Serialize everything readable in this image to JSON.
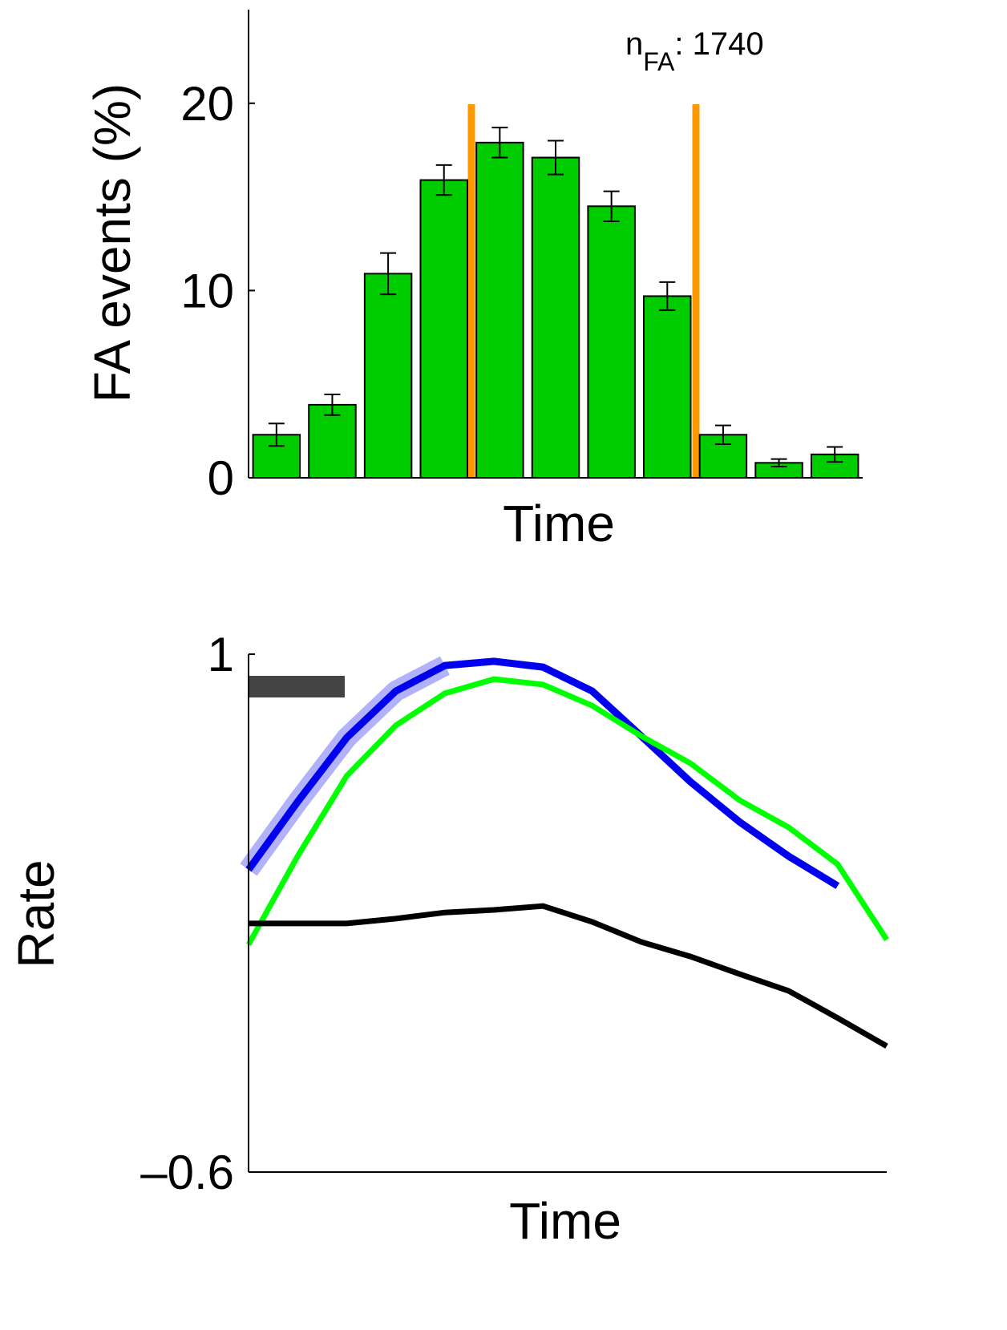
{
  "chart_data": [
    {
      "type": "bar",
      "y_label": "FA events (%)",
      "x_label": "Time",
      "annotation": {
        "base": "n",
        "sub": "FA",
        "rest": ": 1740"
      },
      "categories": [
        null,
        null,
        null,
        null,
        null,
        null,
        null,
        null,
        null,
        null,
        null
      ],
      "values": [
        2.3,
        3.9,
        10.9,
        15.9,
        17.9,
        17.1,
        14.5,
        9.7,
        2.3,
        0.8,
        1.25
      ],
      "errors": [
        0.6,
        0.55,
        1.1,
        0.8,
        0.8,
        0.9,
        0.8,
        0.75,
        0.5,
        0.2,
        0.4
      ],
      "color": "#00cc00",
      "ylim": [
        0,
        25
      ],
      "yticks": [
        0,
        10,
        20
      ]
    },
    {
      "type": "line",
      "y_label": "Rate",
      "x_label": "Time",
      "categories": [
        null,
        null,
        null,
        null,
        null,
        null,
        null,
        null,
        null,
        null,
        null,
        null,
        null,
        null
      ],
      "series": [
        {
          "color": "#0000ee",
          "values": [
            0.334,
            0.544,
            0.742,
            0.886,
            0.965,
            0.978,
            0.96,
            0.886,
            0.747,
            0.606,
            0.482,
            0.376,
            0.284,
            null
          ]
        },
        {
          "color": "#00ff00",
          "values": [
            0.103,
            0.376,
            0.624,
            0.78,
            0.879,
            0.923,
            0.906,
            0.841,
            0.747,
            0.663,
            0.549,
            0.465,
            0.351,
            0.118
          ]
        },
        {
          "color": "#000000",
          "values": [
            0.168,
            0.168,
            0.168,
            0.183,
            0.202,
            0.21,
            0.222,
            0.173,
            0.111,
            0.066,
            0.012,
            -0.04,
            -0.124,
            -0.211
          ]
        }
      ],
      "ylim": [
        -0.6,
        1
      ],
      "yticks": [
        {
          "value": -0.6,
          "label": "–0.6"
        },
        1
      ]
    }
  ]
}
